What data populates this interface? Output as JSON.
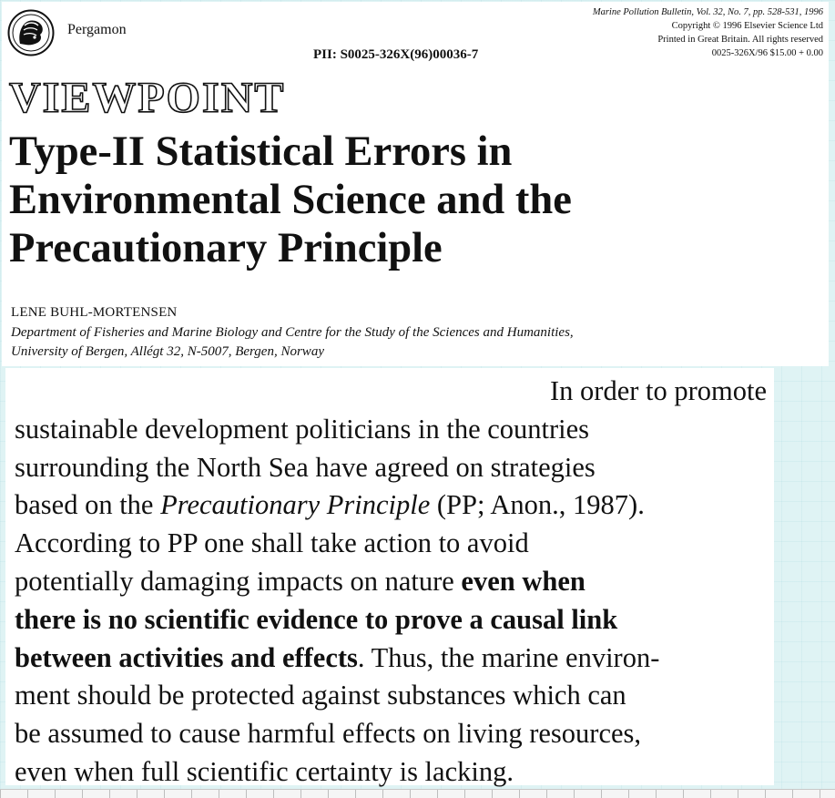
{
  "header": {
    "publisher": "Pergamon",
    "pii": "PII: S0025-326X(96)00036-7",
    "journal_line": "Marine Pollution Bulletin, Vol. 32, No. 7, pp. 528-531, 1996",
    "copyright_line": "Copyright © 1996 Elsevier Science Ltd",
    "printed_line": "Printed in Great Britain. All rights reserved",
    "price_line": "0025-326X/96 $15.00 + 0.00"
  },
  "section_label": "VIEWPOINT",
  "title_lines": [
    "Type-II Statistical Errors in",
    "Environmental Science and the",
    "Precautionary Principle"
  ],
  "author": "LENE BUHL-MORTENSEN",
  "affiliation_lines": [
    "Department of Fisheries and Marine Biology and Centre for the Study of the Sciences and Humanities,",
    "University of Bergen, Allégt 32, N-5007, Bergen, Norway"
  ],
  "body": {
    "l1": "In order to promote",
    "l2": "sustainable development politicians in the countries",
    "l3": "surrounding the North Sea have agreed on strategies",
    "l4_a": "based on the ",
    "l4_b": "Precautionary Principle",
    "l4_c": " (PP; Anon., 1987).",
    "l5": "According to PP one shall take action to avoid",
    "l6_a": "potentially damaging impacts on nature ",
    "l6_b": "even when",
    "l7": "there is no scientific evidence to prove a causal link",
    "l8_a": "between activities and effects",
    "l8_b": ". Thus, the marine environ-",
    "l9": "ment should be protected against substances which can",
    "l10": "be assumed to cause harmful effects on living resources,",
    "l11": "even when full scientific certainty is lacking."
  }
}
